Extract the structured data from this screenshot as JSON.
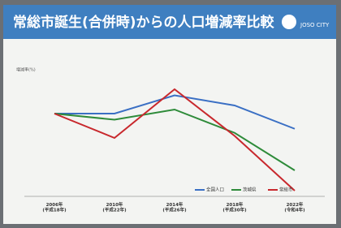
{
  "chart_data": {
    "type": "line",
    "title": "常総市誕生(合併時)からの人口増減率比較",
    "logo": "JOSO CITY",
    "y_label": "増減率(%)",
    "categories": [
      "2006年\n(平成18年)",
      "2010年\n(平成22年)",
      "2014年\n(平成26年)",
      "2018年\n(平成30年)",
      "2022年\n(令和4年)"
    ],
    "series": [
      {
        "name": "全国人口",
        "color": "#3a6fc4",
        "values": [
          0,
          0,
          1.8,
          0.8,
          -1.5
        ]
      },
      {
        "name": "茨城県",
        "color": "#2e8b3a",
        "values": [
          0,
          -0.6,
          0.4,
          -1.9,
          -5.6
        ]
      },
      {
        "name": "常総市",
        "color": "#c8282d",
        "values": [
          0,
          -2.4,
          2.4,
          -2.2,
          -7.6
        ]
      }
    ],
    "ylim": [
      -8,
      4
    ]
  }
}
